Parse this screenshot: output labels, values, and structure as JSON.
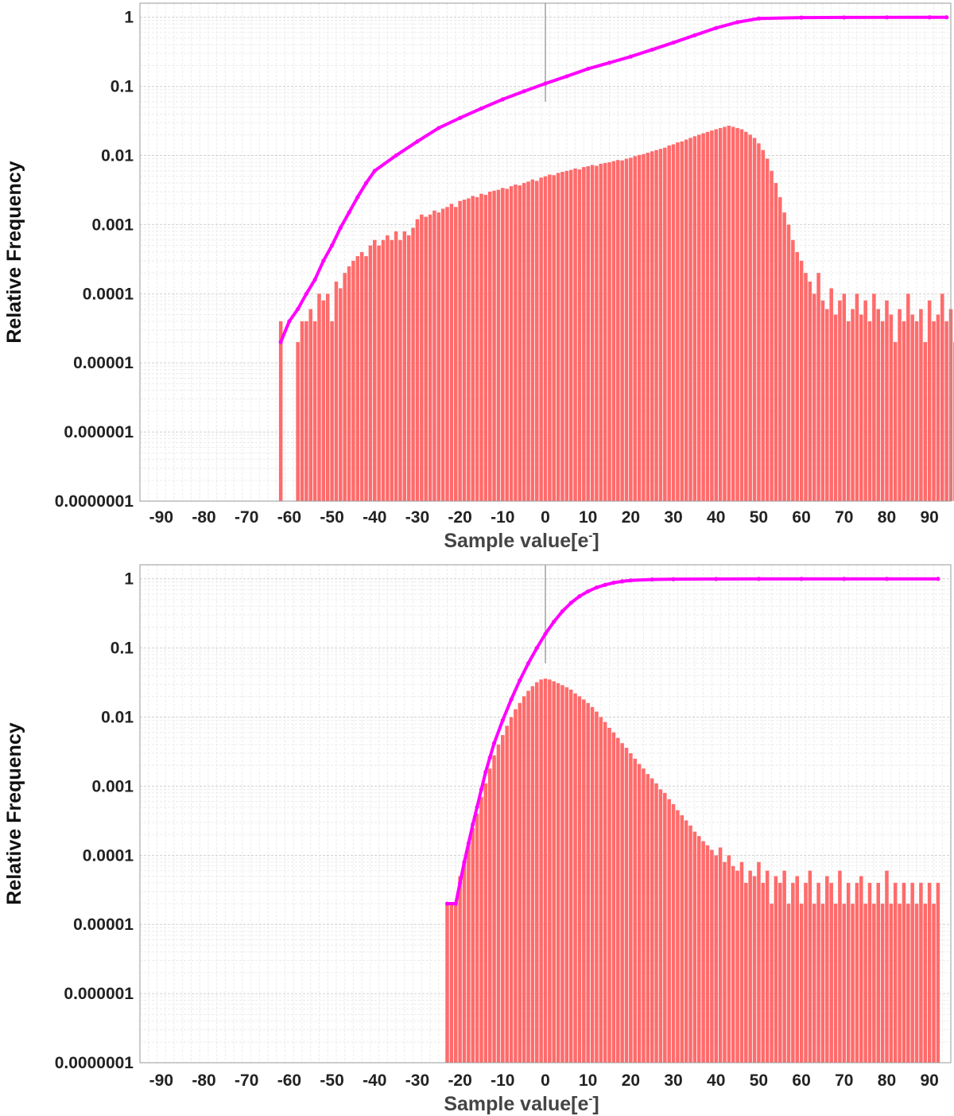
{
  "chart_data": [
    {
      "type": "bar",
      "xlabel": "Sample value[e",
      "xlabel_superscript": "-",
      "xlabel_suffix": "]",
      "ylabel": "Relative Frequency",
      "yscale": "log",
      "ylim": [
        1e-07,
        1.6
      ],
      "xlim": [
        -95,
        95
      ],
      "grid": true,
      "xticks": [
        -90,
        -80,
        -70,
        -60,
        -50,
        -40,
        -30,
        -20,
        -10,
        0,
        10,
        20,
        30,
        40,
        50,
        60,
        70,
        80,
        90
      ],
      "ytick_values": [
        1e-07,
        1e-06,
        1e-05,
        0.0001,
        0.001,
        0.01,
        0.1,
        1
      ],
      "ytick_labels": [
        "0.0000001",
        "0.000001",
        "0.00001",
        "0.0001",
        "0.001",
        "0.01",
        "0.1",
        "1"
      ],
      "bar_color": "#ff6b6b",
      "cumulative_color": "#ff00ff",
      "vertical_marker_x": 0,
      "bars": {
        "x_start": -62,
        "x_step": 1,
        "values": [
          4e-05,
          0,
          0,
          0,
          2e-05,
          4e-05,
          4e-05,
          6e-05,
          4e-05,
          0.0001,
          8e-05,
          0.0001,
          4e-05,
          0.00015,
          0.00012,
          0.0002,
          0.00025,
          0.0003,
          0.00035,
          0.0004,
          0.00035,
          0.0005,
          0.0006,
          0.0005,
          0.0006,
          0.0007,
          0.0006,
          0.0008,
          0.0006,
          0.0008,
          0.0007,
          0.0009,
          0.0012,
          0.0014,
          0.0013,
          0.0014,
          0.0016,
          0.0015,
          0.0017,
          0.0018,
          0.002,
          0.0018,
          0.0022,
          0.0023,
          0.0024,
          0.0026,
          0.0025,
          0.0028,
          0.0027,
          0.003,
          0.0031,
          0.0032,
          0.0034,
          0.0033,
          0.0036,
          0.0038,
          0.0037,
          0.004,
          0.0042,
          0.0045,
          0.0043,
          0.0048,
          0.005,
          0.0053,
          0.0052,
          0.0056,
          0.0058,
          0.006,
          0.0062,
          0.0065,
          0.0063,
          0.0068,
          0.007,
          0.0073,
          0.0071,
          0.0076,
          0.0078,
          0.008,
          0.0083,
          0.0086,
          0.0085,
          0.009,
          0.0093,
          0.0098,
          0.0102,
          0.0105,
          0.011,
          0.0115,
          0.012,
          0.0125,
          0.013,
          0.014,
          0.0145,
          0.0155,
          0.016,
          0.017,
          0.018,
          0.019,
          0.02,
          0.021,
          0.022,
          0.023,
          0.024,
          0.025,
          0.026,
          0.027,
          0.026,
          0.025,
          0.024,
          0.022,
          0.02,
          0.018,
          0.015,
          0.012,
          0.009,
          0.006,
          0.004,
          0.0025,
          0.0015,
          0.001,
          0.0006,
          0.0004,
          0.0003,
          0.0002,
          0.00015,
          0.0001,
          0.0002,
          8e-05,
          6e-05,
          0.00012,
          5e-05,
          8e-05,
          0.0001,
          4e-05,
          6e-05,
          0.0001,
          5e-05,
          8e-05,
          4e-05,
          0.0001,
          6e-05,
          4e-05,
          8e-05,
          5e-05,
          2e-05,
          6e-05,
          4e-05,
          0.0001,
          5e-05,
          4e-05,
          6e-05,
          2e-05,
          8e-05,
          4e-05,
          5e-05,
          0.0001,
          4e-05,
          6e-05,
          2e-05,
          5e-05,
          8e-05,
          4e-05
        ]
      },
      "cumulative": {
        "x": [
          -62,
          -60,
          -58,
          -56,
          -54,
          -52,
          -50,
          -48,
          -46,
          -44,
          -42,
          -40,
          -35,
          -30,
          -25,
          -20,
          -15,
          -10,
          -5,
          0,
          5,
          10,
          15,
          20,
          25,
          30,
          35,
          40,
          45,
          50,
          60,
          70,
          80,
          90,
          94
        ],
        "y": [
          2e-05,
          4e-05,
          6e-05,
          0.0001,
          0.00016,
          0.0003,
          0.0005,
          0.0009,
          0.0015,
          0.0025,
          0.004,
          0.006,
          0.01,
          0.016,
          0.025,
          0.035,
          0.048,
          0.065,
          0.085,
          0.11,
          0.14,
          0.18,
          0.22,
          0.27,
          0.34,
          0.43,
          0.55,
          0.7,
          0.85,
          0.96,
          0.99,
          0.995,
          0.998,
          1.0,
          1.0
        ]
      }
    },
    {
      "type": "bar",
      "xlabel": "Sample value[e",
      "xlabel_superscript": "-",
      "xlabel_suffix": "]",
      "ylabel": "Relative Frequency",
      "yscale": "log",
      "ylim": [
        1e-07,
        1.6
      ],
      "xlim": [
        -95,
        95
      ],
      "grid": true,
      "xticks": [
        -90,
        -80,
        -70,
        -60,
        -50,
        -40,
        -30,
        -20,
        -10,
        0,
        10,
        20,
        30,
        40,
        50,
        60,
        70,
        80,
        90
      ],
      "ytick_values": [
        1e-07,
        1e-06,
        1e-05,
        0.0001,
        0.001,
        0.01,
        0.1,
        1
      ],
      "ytick_labels": [
        "0.0000001",
        "0.000001",
        "0.00001",
        "0.0001",
        "0.001",
        "0.01",
        "0.1",
        "1"
      ],
      "bar_color": "#ff6b6b",
      "cumulative_color": "#ff00ff",
      "vertical_marker_x": 0,
      "bars": {
        "x_start": -23,
        "x_step": 1,
        "values": [
          2e-05,
          2e-05,
          2e-05,
          5e-05,
          8e-05,
          0.00015,
          0.00025,
          0.0004,
          0.0007,
          0.0011,
          0.0018,
          0.0028,
          0.004,
          0.0055,
          0.0075,
          0.01,
          0.013,
          0.016,
          0.02,
          0.024,
          0.028,
          0.032,
          0.035,
          0.036,
          0.035,
          0.033,
          0.031,
          0.029,
          0.027,
          0.025,
          0.022,
          0.02,
          0.018,
          0.016,
          0.014,
          0.012,
          0.01,
          0.0085,
          0.007,
          0.006,
          0.005,
          0.0042,
          0.0036,
          0.003,
          0.0025,
          0.0021,
          0.0018,
          0.0015,
          0.0013,
          0.0011,
          0.0009,
          0.0008,
          0.00065,
          0.00055,
          0.00045,
          0.00038,
          0.00032,
          0.00027,
          0.00022,
          0.00019,
          0.00016,
          0.00014,
          0.00012,
          0.0001,
          0.00013,
          8e-05,
          0.0001,
          7e-05,
          6e-05,
          8e-05,
          4e-05,
          6e-05,
          5e-05,
          8e-05,
          4e-05,
          6e-05,
          2e-05,
          5e-05,
          4e-05,
          6e-05,
          2e-05,
          4e-05,
          5e-05,
          2e-05,
          4e-05,
          6e-05,
          2e-05,
          4e-05,
          2e-05,
          5e-05,
          4e-05,
          2e-05,
          6e-05,
          2e-05,
          4e-05,
          2e-05,
          4e-05,
          5e-05,
          2e-05,
          4e-05,
          2e-05,
          4e-05,
          2e-05,
          6e-05,
          2e-05,
          4e-05,
          2e-05,
          4e-05,
          2e-05,
          4e-05,
          2e-05,
          4e-05,
          2e-05,
          4e-05,
          2e-05,
          4e-05
        ]
      },
      "cumulative": {
        "x": [
          -23,
          -21,
          -20,
          -19,
          -18,
          -17,
          -16,
          -15,
          -14,
          -13,
          -12,
          -10,
          -8,
          -6,
          -4,
          -2,
          0,
          2,
          4,
          6,
          8,
          10,
          12,
          14,
          16,
          18,
          20,
          25,
          30,
          40,
          50,
          60,
          70,
          80,
          92
        ],
        "y": [
          2e-05,
          2e-05,
          4e-05,
          8e-05,
          0.00015,
          0.00028,
          0.0005,
          0.0009,
          0.0016,
          0.0026,
          0.0042,
          0.009,
          0.018,
          0.034,
          0.06,
          0.1,
          0.16,
          0.24,
          0.34,
          0.45,
          0.56,
          0.66,
          0.75,
          0.82,
          0.88,
          0.92,
          0.95,
          0.98,
          0.99,
          0.997,
          0.999,
          1.0,
          1.0,
          1.0,
          1.0
        ]
      }
    }
  ]
}
